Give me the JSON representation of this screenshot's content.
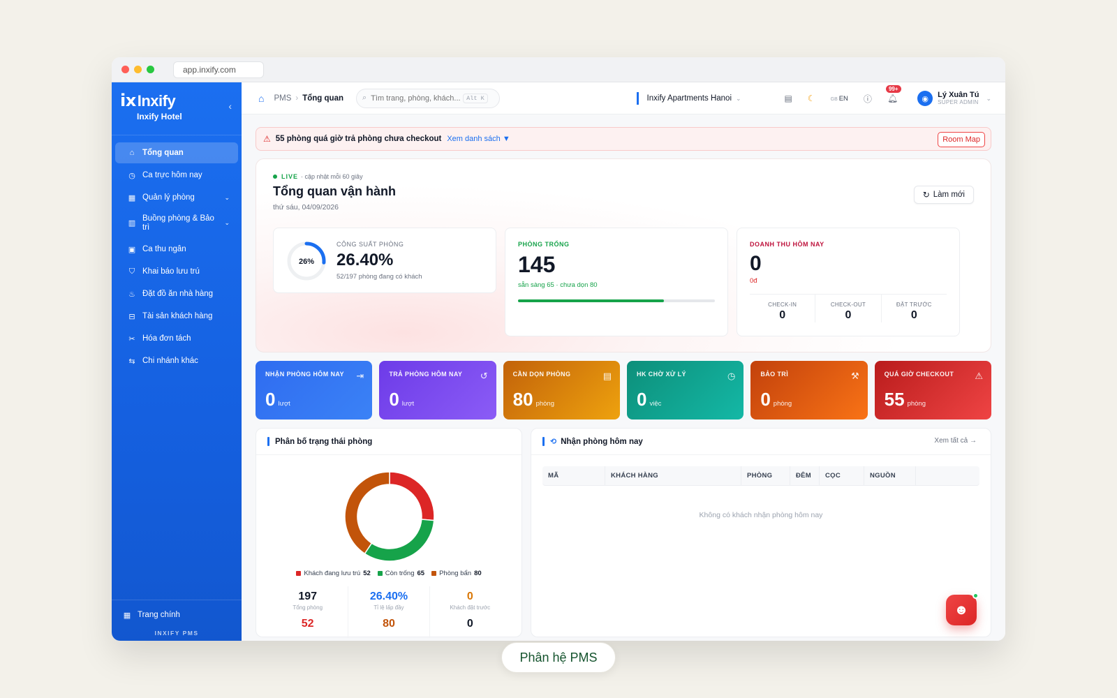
{
  "browser": {
    "url": "app.inxify.com"
  },
  "sidebar": {
    "logo": "Inxify",
    "hotel": "Inxify Hotel",
    "items": [
      {
        "label": "Tổng quan",
        "icon": "home-icon"
      },
      {
        "label": "Ca trực hôm nay",
        "icon": "clock-icon"
      },
      {
        "label": "Quản lý phòng",
        "icon": "grid-icon"
      },
      {
        "label": "Buồng phòng & Bảo trì",
        "icon": "building-icon"
      },
      {
        "label": "Ca thu ngân",
        "icon": "cashier-icon"
      },
      {
        "label": "Khai báo lưu trú",
        "icon": "shield-icon"
      },
      {
        "label": "Đặt đồ ăn nhà hàng",
        "icon": "food-icon"
      },
      {
        "label": "Tài sản khách hàng",
        "icon": "box-icon"
      },
      {
        "label": "Hóa đơn tách",
        "icon": "scissors-icon"
      },
      {
        "label": "Chi nhánh khác",
        "icon": "swap-icon"
      }
    ],
    "home_link": "Trang chính",
    "footer": "INXIFY PMS"
  },
  "topbar": {
    "crumb_root": "PMS",
    "crumb_current": "Tổng quan",
    "search_placeholder": "Tìm trang, phòng, khách...",
    "shortcut": "Alt K",
    "property": "Inxify Apartments Hanoi",
    "lang": "EN",
    "notif_badge": "99+",
    "user_name": "Lý Xuân Tú",
    "user_role": "SUPER ADMIN"
  },
  "alert": {
    "message": "55 phòng quá giờ trả phòng chưa checkout",
    "link": "Xem danh sách ▼",
    "button": "Room Map"
  },
  "overview": {
    "live": "LIVE",
    "live_note": "· cập nhật mỗi 60 giây",
    "title": "Tổng quan vận hành",
    "date": "thứ sáu, 04/09/2026",
    "refresh": "Làm mới",
    "occupancy": {
      "label": "CÔNG SUẤT PHÒNG",
      "ring": "26%",
      "ring_fraction": 0.264,
      "value": "26.40%",
      "sub": "52/197 phòng đang có khách"
    },
    "vacant": {
      "label": "PHÒNG TRỐNG",
      "value": "145",
      "sub": "sẵn sàng 65 · chưa dọn 80",
      "progress": 0.74
    },
    "revenue": {
      "label": "DOANH THU HÔM NAY",
      "value": "0",
      "sub": "0đ",
      "stats": [
        {
          "label": "CHECK-IN",
          "value": "0"
        },
        {
          "label": "CHECK-OUT",
          "value": "0"
        },
        {
          "label": "ĐẶT TRƯỚC",
          "value": "0"
        }
      ]
    }
  },
  "tiles": [
    {
      "label": "NHẬN PHÒNG HÔM NAY",
      "value": "0",
      "unit": "lượt",
      "icon": "login-icon",
      "color1": "#2f6cf0",
      "color2": "#3b82f6"
    },
    {
      "label": "TRẢ PHÒNG HÔM NAY",
      "value": "0",
      "unit": "lượt",
      "icon": "logout-icon",
      "color1": "#6d3be8",
      "color2": "#8b5cf6"
    },
    {
      "label": "CẦN DỌN PHÒNG",
      "value": "80",
      "unit": "phòng",
      "icon": "broom-icon",
      "color1": "#c2620a",
      "color2": "#eea20e"
    },
    {
      "label": "HK CHỜ XỬ LÝ",
      "value": "0",
      "unit": "việc",
      "icon": "clock-icon",
      "color1": "#0d8f7a",
      "color2": "#14b8a6"
    },
    {
      "label": "BẢO TRÌ",
      "value": "0",
      "unit": "phòng",
      "icon": "wrench-icon",
      "color1": "#c2410c",
      "color2": "#f97316"
    },
    {
      "label": "QUÁ GIỜ CHECKOUT",
      "value": "55",
      "unit": "phòng",
      "icon": "warning-icon",
      "color1": "#b91c1c",
      "color2": "#ef4444"
    }
  ],
  "distribution": {
    "title": "Phân bố trạng thái phòng",
    "legend": [
      {
        "label": "Khách đang lưu trú",
        "value": "52",
        "color": "#dc2626"
      },
      {
        "label": "Còn trống",
        "value": "65",
        "color": "#16a34a"
      },
      {
        "label": "Phòng bẩn",
        "value": "80",
        "color": "#c2540a"
      }
    ],
    "stats": [
      {
        "value": "197",
        "label": "Tổng phòng",
        "color": "#111827",
        "value2": "52",
        "color2": "#dc2626"
      },
      {
        "value": "26.40%",
        "label": "Tỉ lệ lấp đầy",
        "color": "#1b6ff0",
        "value2": "80",
        "color2": "#c2540a"
      },
      {
        "value": "0",
        "label": "Khách đặt trước",
        "color": "#d97706",
        "value2": "0",
        "color2": "#111827"
      }
    ]
  },
  "checkins": {
    "title": "Nhận phòng hôm nay",
    "view_all": "Xem tất cả →",
    "columns": [
      "MÃ",
      "KHÁCH HÀNG",
      "PHÒNG",
      "ĐÊM",
      "CỌC",
      "NGUỒN"
    ],
    "empty": "Không có khách nhận phòng hôm nay"
  },
  "caption": "Phân hệ PMS"
}
